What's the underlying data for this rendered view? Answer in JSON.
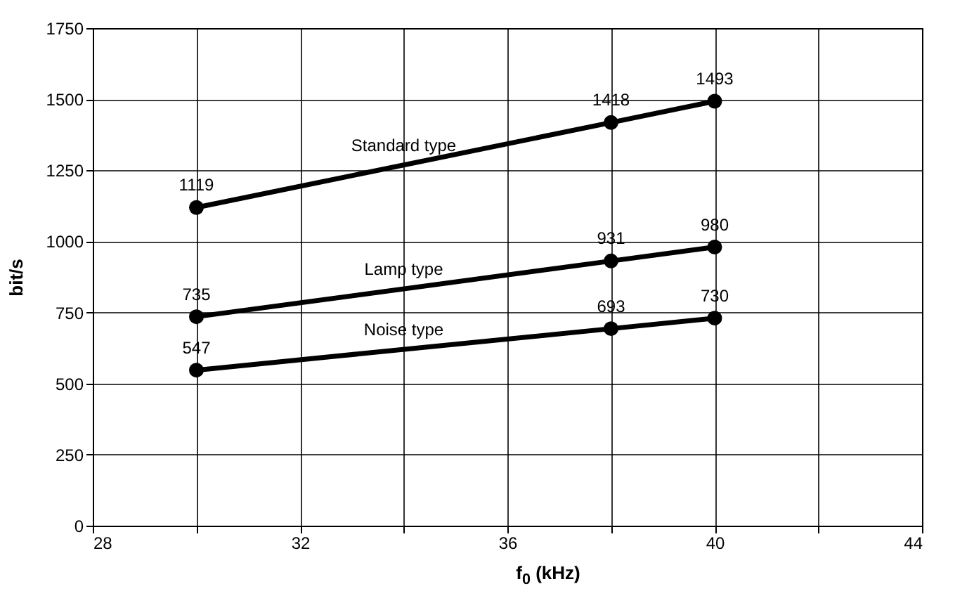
{
  "chart_data": {
    "type": "line",
    "xlabel": "f$_{0}$ (kHz)",
    "ylabel": "bit/s",
    "xlim": [
      28,
      44
    ],
    "xticks": [
      28,
      {
        "value": 30,
        "label": null
      },
      32,
      {
        "value": 34,
        "label": null
      },
      36,
      {
        "value": 38,
        "label": null
      },
      40,
      {
        "value": 42,
        "label": null
      },
      44
    ],
    "ylim": [
      0,
      1750
    ],
    "yticks": [
      0,
      250,
      500,
      750,
      1000,
      1250,
      1500,
      1750
    ],
    "grid": true,
    "legend": false,
    "marker": "circle",
    "line_style": "solid",
    "data_labels": true,
    "series": [
      {
        "name": "Standard type",
        "color": "#000000",
        "x": [
          30,
          38,
          40
        ],
        "values": [
          1119,
          1418,
          1493
        ]
      },
      {
        "name": "Lamp type",
        "color": "#000000",
        "x": [
          30,
          38,
          40
        ],
        "values": [
          735,
          931,
          980
        ]
      },
      {
        "name": "Noise type",
        "color": "#000000",
        "x": [
          30,
          38,
          40
        ],
        "values": [
          547,
          693,
          730
        ]
      }
    ]
  }
}
